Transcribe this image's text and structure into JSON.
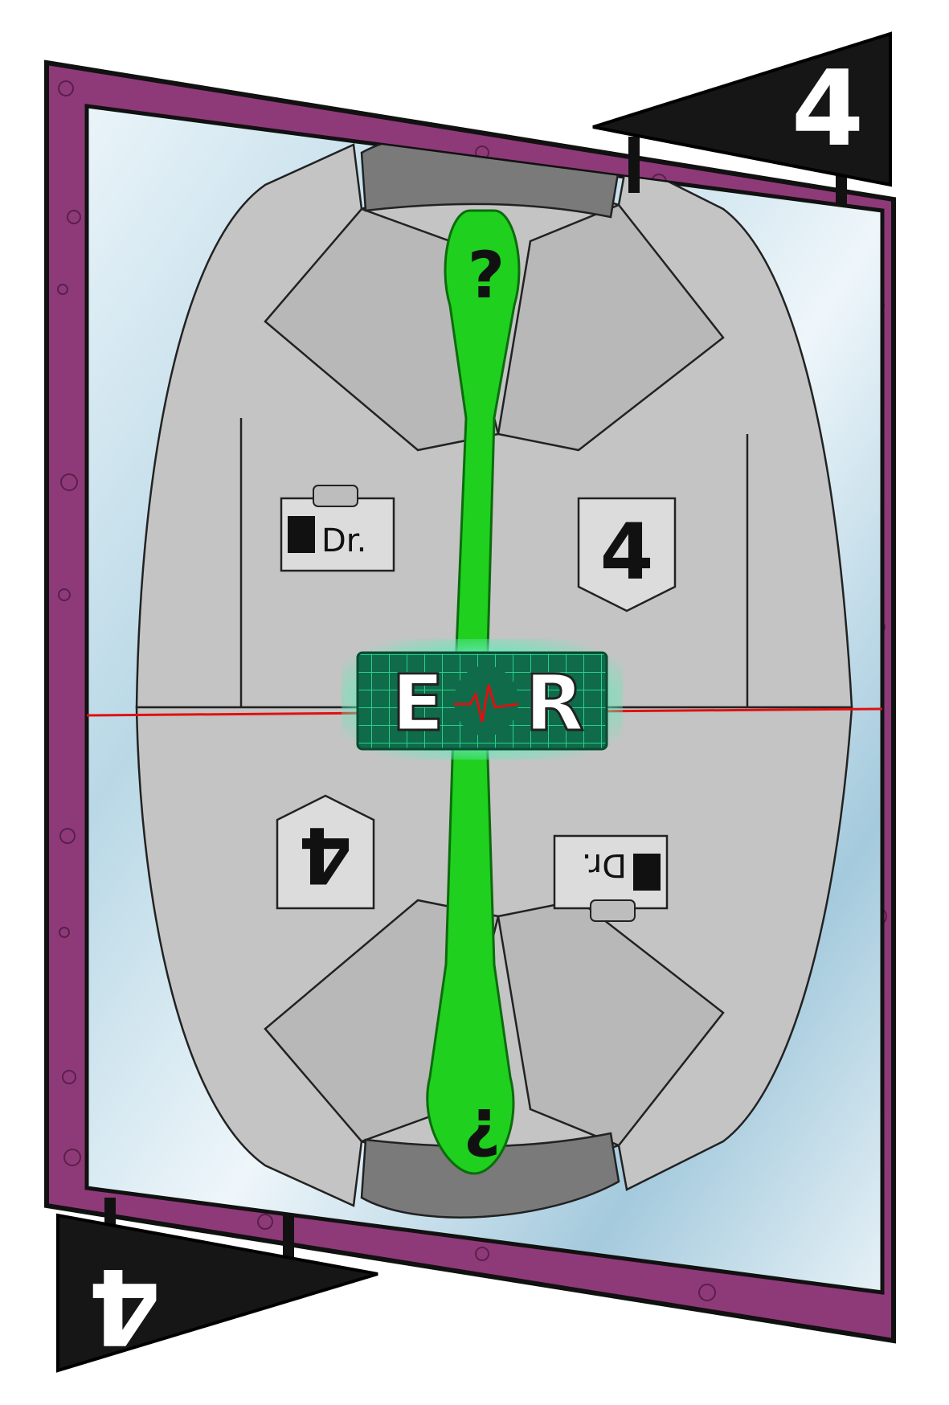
{
  "card": {
    "rank": "4",
    "rank_badge": "4",
    "name_badge": "Dr.",
    "tie_symbol": "?",
    "logo": {
      "left": "E",
      "right": "R"
    }
  },
  "colors": {
    "frame": "#8e3a78",
    "frame_dark": "#6d2a5c",
    "glass_light": "#e6f2f8",
    "glass_blue": "#9fc9dc",
    "coat": "#c4c4c4",
    "coat_shadow": "#a9a9a9",
    "tie": "#1fd01f",
    "tie_dark": "#149a14",
    "corner": "#161616",
    "logo_bg": "#0f6b4a",
    "logo_grid": "#2ad08a",
    "ecg_line": "#e01010"
  },
  "icons": {
    "corner_top": "triangle-flag-icon",
    "corner_bottom": "triangle-flag-icon",
    "heartbeat": "ecg-icon"
  }
}
